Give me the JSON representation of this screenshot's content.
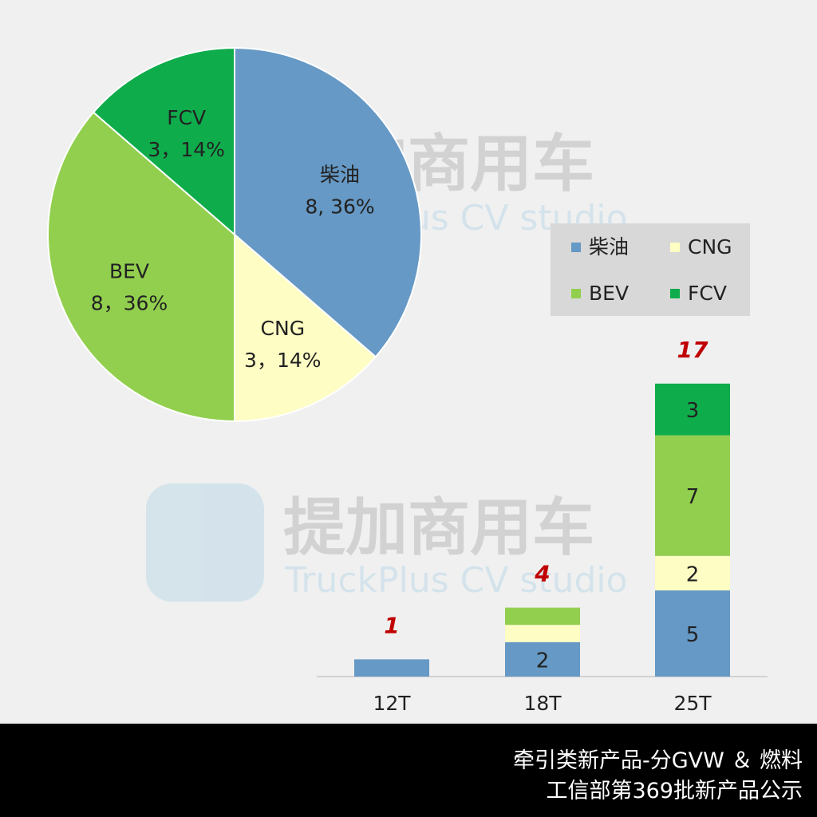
{
  "watermark": {
    "brand_cn": "提加商用车",
    "brand_en": "TruckPlus CV studio"
  },
  "chart_data": [
    {
      "type": "pie",
      "slices": [
        {
          "name": "柴油",
          "value": 8,
          "percent": "36%",
          "color": "#6699c5"
        },
        {
          "name": "CNG",
          "value": 3,
          "percent": "14%",
          "color": "#fdfdc4"
        },
        {
          "name": "BEV",
          "value": 8,
          "percent": "36%",
          "color": "#92cf4e"
        },
        {
          "name": "FCV",
          "value": 3,
          "percent": "14%",
          "color": "#0fac4c"
        }
      ],
      "slice_labels": [
        {
          "name": "柴油",
          "value_text": "8, 36%"
        },
        {
          "name": "CNG",
          "value_text": "3，14%"
        },
        {
          "name": "BEV",
          "value_text": "8，36%"
        },
        {
          "name": "FCV",
          "value_text": "3，14%"
        }
      ],
      "legend": {
        "placement": "right",
        "entries": [
          {
            "name": "柴油",
            "color": "#6699c5"
          },
          {
            "name": "CNG",
            "color": "#fdfdc4"
          },
          {
            "name": "BEV",
            "color": "#92cf4e"
          },
          {
            "name": "FCV",
            "color": "#0fac4c"
          }
        ]
      }
    },
    {
      "type": "bar",
      "stacked": true,
      "categories": [
        "12T",
        "18T",
        "25T"
      ],
      "series": [
        {
          "name": "柴油",
          "color": "#6699c5",
          "values": [
            1,
            2,
            5
          ],
          "labels": [
            "",
            "2",
            "5"
          ]
        },
        {
          "name": "CNG",
          "color": "#fdfdc4",
          "values": [
            0,
            1,
            2
          ],
          "labels": [
            "",
            "",
            "2"
          ]
        },
        {
          "name": "BEV",
          "color": "#92cf4e",
          "values": [
            0,
            1,
            7
          ],
          "labels": [
            "",
            "",
            "7"
          ]
        },
        {
          "name": "FCV",
          "color": "#0fac4c",
          "values": [
            0,
            0,
            3
          ],
          "labels": [
            "",
            "",
            "3"
          ]
        }
      ],
      "totals": [
        "1",
        "4",
        "17"
      ],
      "total_color": "#c00000",
      "grid": false
    }
  ],
  "footer": {
    "line1": "牵引类新产品-分GVW ＆ 燃料",
    "line2": "工信部第369批新产品公示"
  }
}
